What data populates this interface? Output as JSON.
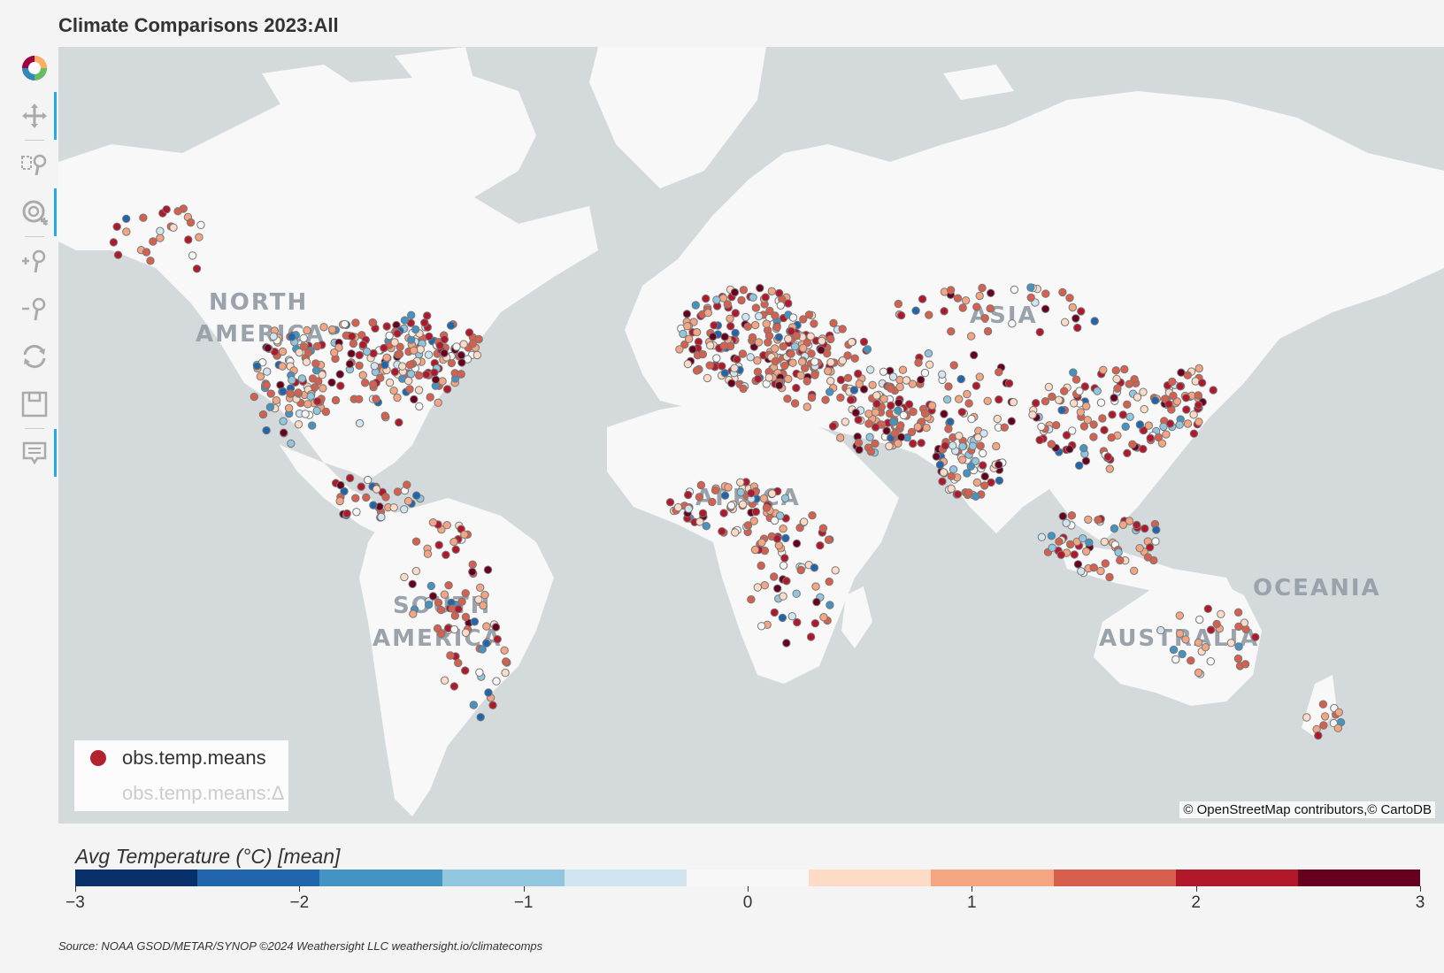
{
  "title": "Climate Comparisons 2023:All",
  "toolbar": [
    {
      "name": "bokeh-logo-icon",
      "active": false
    },
    {
      "name": "pan-tool-icon",
      "active": true
    },
    {
      "name": "box-zoom-tool-icon",
      "active": false
    },
    {
      "name": "wheel-zoom-tool-icon",
      "active": true
    },
    {
      "name": "zoom-in-tool-icon",
      "active": false
    },
    {
      "name": "zoom-out-tool-icon",
      "active": false
    },
    {
      "name": "reset-tool-icon",
      "active": false
    },
    {
      "name": "save-tool-icon",
      "active": false
    },
    {
      "name": "hover-tool-icon",
      "active": true
    }
  ],
  "map": {
    "continent_labels": [
      "NORTH",
      "AMERICA",
      "SOUTH",
      "AMERICA",
      "AFRICA",
      "ASIA",
      "AUSTRALIA",
      "OCEANIA"
    ],
    "attribution_prefix": "© OpenStreetMap",
    "attribution_suffix": "contributors,© CartoDB",
    "land_color": "#f8f8f8",
    "water_color": "#d4dadc"
  },
  "legend": {
    "items": [
      {
        "label": "obs.temp.means",
        "color": "#b2232f",
        "muted": false
      },
      {
        "label": "obs.temp.means:Δ",
        "color": "",
        "muted": true
      }
    ]
  },
  "colorbar": {
    "title": "Avg Temperature (°C) [mean]",
    "low": -3,
    "high": 3,
    "palette": [
      "#08306b",
      "#2166ac",
      "#4393c3",
      "#92c5de",
      "#d1e5f0",
      "#f7f7f7",
      "#fddbc7",
      "#f4a582",
      "#d6604d",
      "#b2182b",
      "#67001f"
    ],
    "ticks": [
      "−3",
      "−2",
      "−1",
      "0",
      "1",
      "2",
      "3"
    ]
  },
  "source": "Source: NOAA GSOD/METAR/SYNOP  ©2024 Weathersight LLC    weathersight.io/climatecomps"
}
